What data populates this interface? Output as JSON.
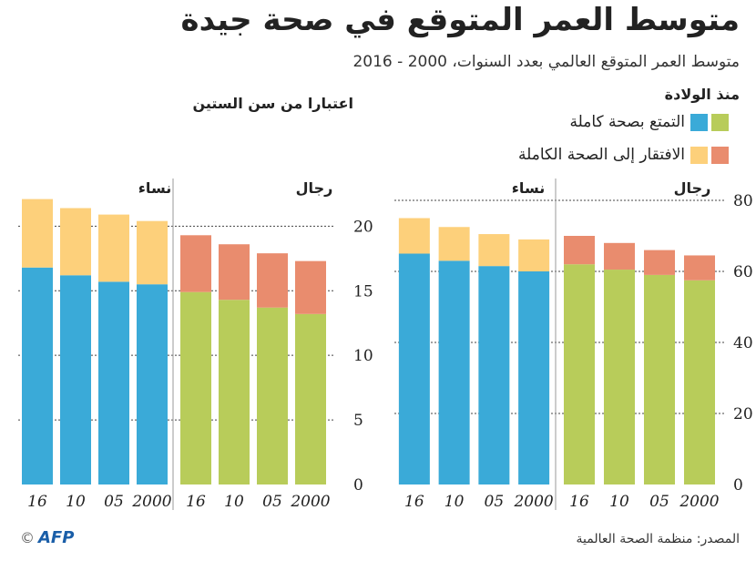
{
  "header": {
    "title": "متوسط العمر المتوقع في صحة جيدة",
    "subtitle": "متوسط العمر المتوقع العالمي بعدد السنوات، 2000 - 2016"
  },
  "sections": {
    "birth": "منذ الولادة",
    "sixty": "اعتبارا من سن الستين"
  },
  "legend": {
    "healthy": "التمتع بصحة كاملة",
    "unhealthy": "الافتقار إلى الصحة الكاملة"
  },
  "footer": {
    "source": "المصدر: منظمة الصحة العالمية",
    "copyright": "©",
    "logo": "AFP"
  },
  "colors": {
    "men_healthy": "#b8cc5a",
    "men_unhealthy": "#e98c6e",
    "women_healthy": "#3aaad8",
    "women_unhealthy": "#fdd07b"
  },
  "chart_data": [
    {
      "type": "bar",
      "stacked": true,
      "group": "منذ الولادة",
      "ylim": [
        0,
        80
      ],
      "yticks": [
        0,
        20,
        40,
        60,
        80
      ],
      "panels": [
        {
          "title": "رجال",
          "categories": [
            "2000",
            "05",
            "10",
            "16"
          ],
          "healthy": [
            57.5,
            59,
            60.5,
            62
          ],
          "total": [
            64.5,
            66,
            68,
            70
          ]
        },
        {
          "title": "نساء",
          "categories": [
            "2000",
            "05",
            "10",
            "16"
          ],
          "healthy": [
            60,
            61.5,
            63,
            65
          ],
          "total": [
            69,
            70.5,
            72.5,
            75
          ]
        }
      ]
    },
    {
      "type": "bar",
      "stacked": true,
      "group": "اعتبارا من سن الستين",
      "ylim": [
        0,
        22
      ],
      "yticks": [
        0,
        5,
        10,
        15,
        20
      ],
      "panels": [
        {
          "title": "رجال",
          "categories": [
            "2000",
            "05",
            "10",
            "16"
          ],
          "healthy": [
            13.2,
            13.7,
            14.3,
            14.9
          ],
          "total": [
            17.3,
            17.9,
            18.6,
            19.3
          ]
        },
        {
          "title": "نساء",
          "categories": [
            "2000",
            "05",
            "10",
            "16"
          ],
          "healthy": [
            15.5,
            15.7,
            16.2,
            16.8
          ],
          "total": [
            20.4,
            20.9,
            21.4,
            22.1
          ]
        }
      ]
    }
  ]
}
